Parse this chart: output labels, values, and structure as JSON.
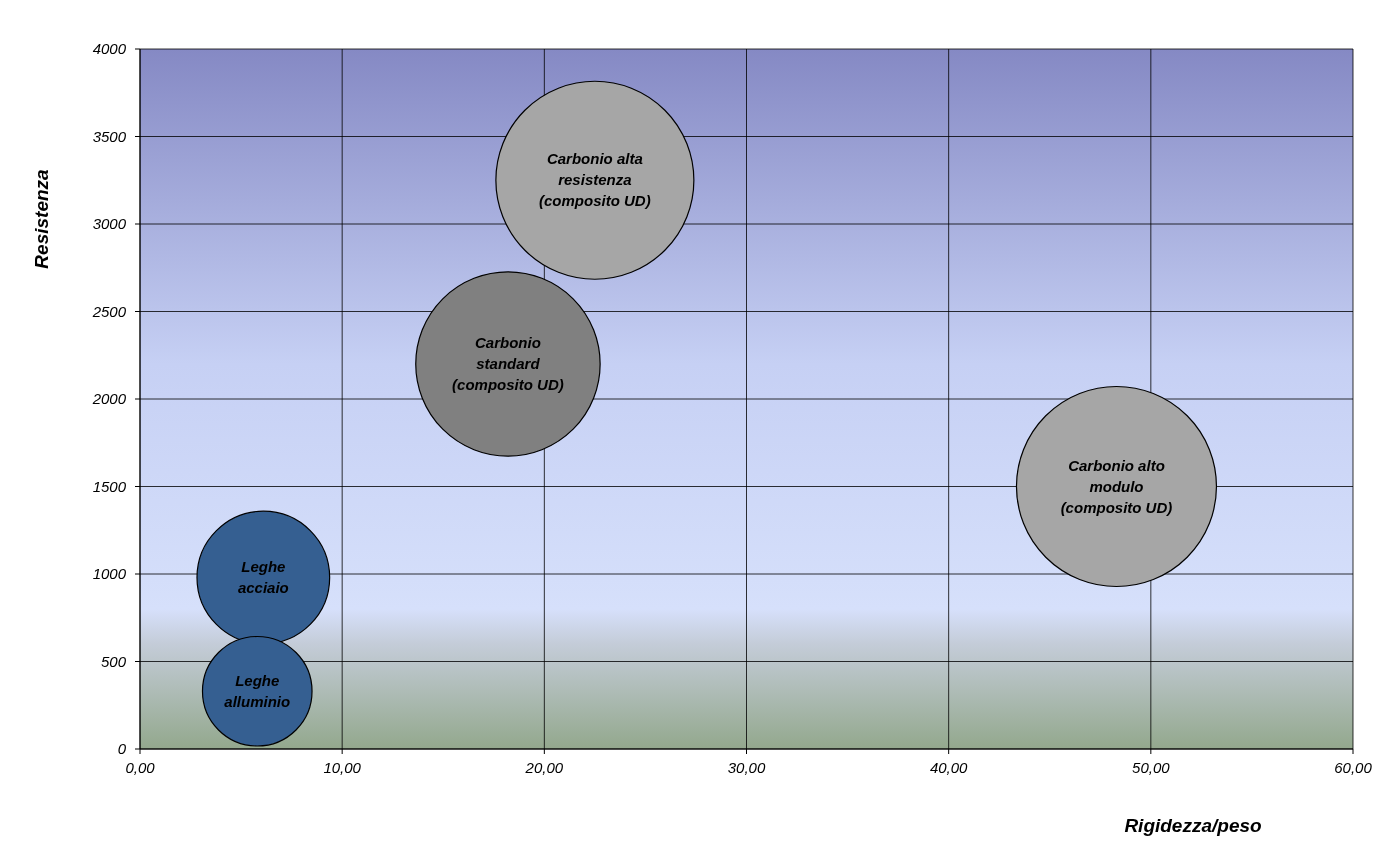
{
  "chart_data": {
    "type": "bubble",
    "xlabel": "Rigidezza/peso",
    "ylabel": "Resistenza",
    "xlim": [
      0,
      60
    ],
    "xticks": [
      {
        "value": 0,
        "label": "0,00"
      },
      {
        "value": 10,
        "label": "10,00"
      },
      {
        "value": 20,
        "label": "20,00"
      },
      {
        "value": 30,
        "label": "30,00"
      },
      {
        "value": 40,
        "label": "40,00"
      },
      {
        "value": 50,
        "label": "50,00"
      },
      {
        "value": 60,
        "label": "60,00"
      }
    ],
    "ylim": [
      0,
      4000
    ],
    "yticks": [
      0,
      500,
      1000,
      1500,
      2000,
      2500,
      3000,
      3500,
      4000
    ],
    "grid": true,
    "series": [
      {
        "name": "Carbonio alta\nresistenza\n(composito UD)",
        "color": "#a6a6a6",
        "x": [
          22.5
        ],
        "values": [
          3250
        ],
        "sizes": [
          0.98
        ]
      },
      {
        "name": "Carbonio\nstandard\n(composito UD)",
        "color": "#808080",
        "x": [
          18.2
        ],
        "values": [
          2200
        ],
        "sizes": [
          0.85
        ]
      },
      {
        "name": "Carbonio alto\nmodulo\n(composito UD)",
        "color": "#a6a6a6",
        "x": [
          48.3
        ],
        "values": [
          1500
        ],
        "sizes": [
          1
        ]
      },
      {
        "name": "Leghe\nacciaio",
        "color": "#355f91",
        "x": [
          6.1
        ],
        "values": [
          980
        ],
        "sizes": [
          0.44
        ]
      },
      {
        "name": "Leghe\nalluminio",
        "color": "#355f91",
        "x": [
          5.8
        ],
        "values": [
          330
        ],
        "sizes": [
          0.3
        ]
      }
    ]
  }
}
